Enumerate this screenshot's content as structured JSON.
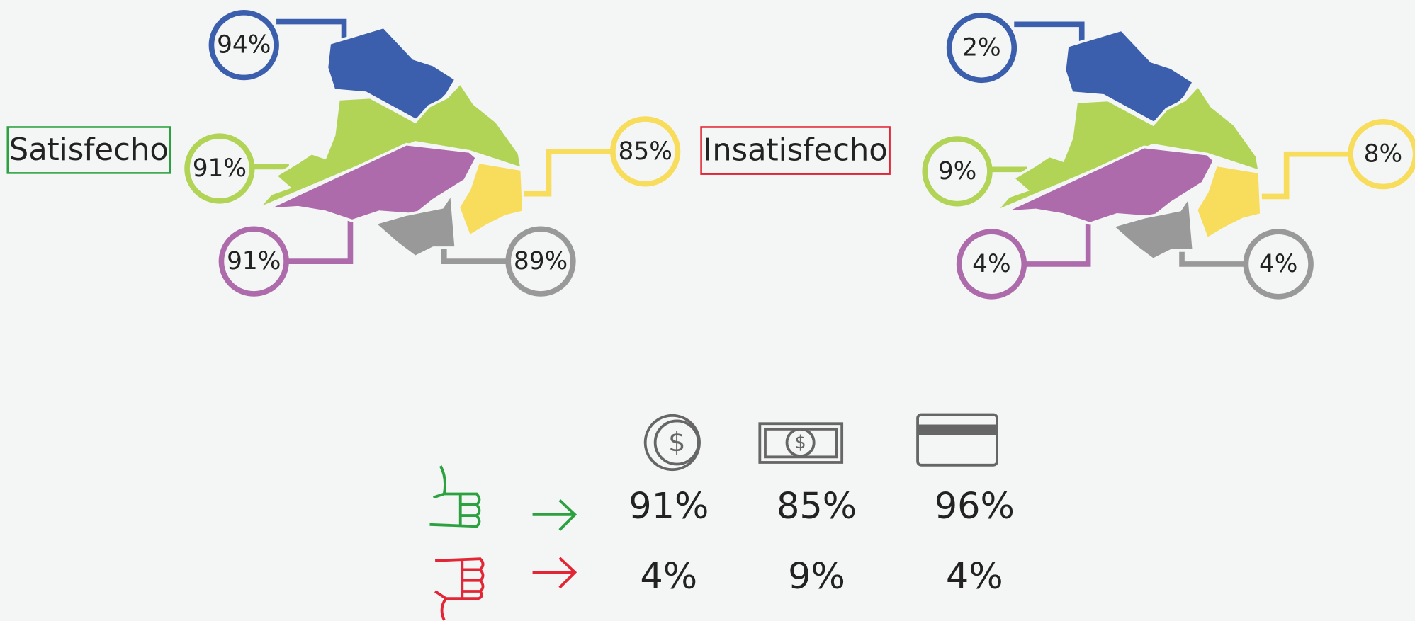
{
  "maps": [
    {
      "label": "Satisfecho",
      "regions": [
        {
          "name": "blue",
          "value": "94%"
        },
        {
          "name": "green",
          "value": "91%"
        },
        {
          "name": "yellow",
          "value": "85%"
        },
        {
          "name": "purple",
          "value": "91%"
        },
        {
          "name": "gray",
          "value": "89%"
        }
      ]
    },
    {
      "label": "Insatisfecho",
      "regions": [
        {
          "name": "blue",
          "value": "2%"
        },
        {
          "name": "green",
          "value": "9%"
        },
        {
          "name": "yellow",
          "value": "8%"
        },
        {
          "name": "purple",
          "value": "4%"
        },
        {
          "name": "gray",
          "value": "4%"
        }
      ]
    }
  ],
  "table": {
    "rows": [
      [
        "91%",
        "85%",
        "96%"
      ],
      [
        "4%",
        "9%",
        "4%"
      ]
    ]
  }
}
